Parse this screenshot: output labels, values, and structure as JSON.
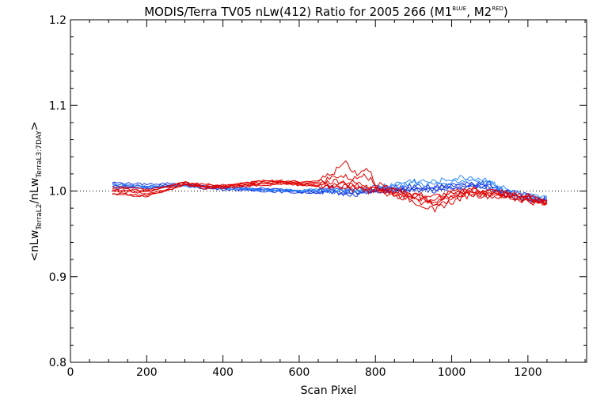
{
  "chart_data": {
    "type": "line",
    "title": {
      "main": "MODIS/Terra TV05 nLw(412) Ratio for 2005 266 (M1",
      "m1_sup": "BLUE",
      "mid": ", M2",
      "m2_sup": "RED",
      "end": ")"
    },
    "xlabel": "Scan Pixel",
    "ylabel": {
      "open": "<nLw",
      "sub1": "TerraL2",
      "mid": "/nLw",
      "sub2": "TerraL3:7DAY",
      "close": ">"
    },
    "xlim": [
      0,
      1354
    ],
    "ylim": [
      0.8,
      1.2
    ],
    "x_ticks": [
      0,
      200,
      400,
      600,
      800,
      1000,
      1200
    ],
    "x_tick_labels": [
      "0",
      "200",
      "400",
      "600",
      "800",
      "1000",
      "1200"
    ],
    "y_ticks": [
      0.8,
      0.9,
      1.0,
      1.1,
      1.2
    ],
    "y_tick_labels": [
      "0.8",
      "0.9",
      "1.0",
      "1.1",
      "1.2"
    ],
    "reference_line": 1.0,
    "x_range": [
      110,
      1250
    ],
    "colors": {
      "blue": "#1a3fe0",
      "lightblue": "#2e8bff",
      "red": "#e00000"
    },
    "series": [
      {
        "group": "blue",
        "color": "#1a3fe0",
        "values": [
          [
            110,
            1.008
          ],
          [
            150,
            1.007
          ],
          [
            200,
            1.006
          ],
          [
            250,
            1.007
          ],
          [
            300,
            1.008
          ],
          [
            350,
            1.005
          ],
          [
            400,
            1.004
          ],
          [
            450,
            1.003
          ],
          [
            500,
            1.002
          ],
          [
            550,
            1.001
          ],
          [
            600,
            1.0
          ],
          [
            650,
            1.0
          ],
          [
            700,
            1.0
          ],
          [
            750,
            0.999
          ],
          [
            800,
            1.001
          ],
          [
            850,
            1.003
          ],
          [
            900,
            1.004
          ],
          [
            950,
            1.003
          ],
          [
            1000,
            1.006
          ],
          [
            1050,
            1.008
          ],
          [
            1100,
            1.006
          ],
          [
            1150,
            0.998
          ],
          [
            1200,
            0.993
          ],
          [
            1250,
            0.99
          ]
        ]
      },
      {
        "group": "blue",
        "color": "#1a3fe0",
        "values": [
          [
            110,
            1.006
          ],
          [
            150,
            1.005
          ],
          [
            200,
            1.004
          ],
          [
            250,
            1.006
          ],
          [
            300,
            1.007
          ],
          [
            350,
            1.004
          ],
          [
            400,
            1.003
          ],
          [
            450,
            1.002
          ],
          [
            500,
            1.001
          ],
          [
            550,
            1.0
          ],
          [
            600,
            0.999
          ],
          [
            650,
            0.999
          ],
          [
            700,
            0.998
          ],
          [
            750,
            0.998
          ],
          [
            800,
            1.0
          ],
          [
            850,
            1.002
          ],
          [
            900,
            1.002
          ],
          [
            950,
            1.001
          ],
          [
            1000,
            1.004
          ],
          [
            1050,
            1.006
          ],
          [
            1100,
            1.004
          ],
          [
            1150,
            0.996
          ],
          [
            1200,
            0.991
          ],
          [
            1250,
            0.988
          ]
        ]
      },
      {
        "group": "blue",
        "color": "#1a3fe0",
        "values": [
          [
            110,
            1.01
          ],
          [
            150,
            1.009
          ],
          [
            200,
            1.008
          ],
          [
            250,
            1.009
          ],
          [
            300,
            1.009
          ],
          [
            350,
            1.006
          ],
          [
            400,
            1.005
          ],
          [
            450,
            1.004
          ],
          [
            500,
            1.003
          ],
          [
            550,
            1.002
          ],
          [
            600,
            1.001
          ],
          [
            650,
            1.001
          ],
          [
            700,
            1.002
          ],
          [
            750,
            1.0
          ],
          [
            800,
            1.002
          ],
          [
            850,
            1.004
          ],
          [
            900,
            1.005
          ],
          [
            950,
            1.004
          ],
          [
            1000,
            1.007
          ],
          [
            1050,
            1.009
          ],
          [
            1100,
            1.008
          ],
          [
            1150,
            0.999
          ],
          [
            1200,
            0.994
          ],
          [
            1250,
            0.991
          ]
        ]
      },
      {
        "group": "blue",
        "color": "#1a3fe0",
        "values": [
          [
            110,
            1.004
          ],
          [
            150,
            1.004
          ],
          [
            200,
            1.003
          ],
          [
            250,
            1.005
          ],
          [
            300,
            1.006
          ],
          [
            350,
            1.003
          ],
          [
            400,
            1.002
          ],
          [
            450,
            1.001
          ],
          [
            500,
            1.0
          ],
          [
            550,
            0.999
          ],
          [
            600,
            0.998
          ],
          [
            650,
            0.998
          ],
          [
            700,
            0.997
          ],
          [
            750,
            0.997
          ],
          [
            800,
            0.999
          ],
          [
            850,
            1.001
          ],
          [
            900,
            1.001
          ],
          [
            950,
            1.0
          ],
          [
            1000,
            1.003
          ],
          [
            1050,
            1.005
          ],
          [
            1100,
            1.003
          ],
          [
            1150,
            0.995
          ],
          [
            1200,
            0.99
          ],
          [
            1250,
            0.987
          ]
        ]
      },
      {
        "group": "lightblue",
        "color": "#2e8bff",
        "values": [
          [
            110,
            1.007
          ],
          [
            200,
            1.005
          ],
          [
            300,
            1.007
          ],
          [
            400,
            1.004
          ],
          [
            500,
            1.002
          ],
          [
            600,
            1.001
          ],
          [
            700,
            1.003
          ],
          [
            750,
            1.002
          ],
          [
            800,
            1.004
          ],
          [
            850,
            1.008
          ],
          [
            900,
            1.012
          ],
          [
            950,
            1.01
          ],
          [
            1000,
            1.014
          ],
          [
            1050,
            1.016
          ],
          [
            1100,
            1.012
          ],
          [
            1150,
            1.0
          ],
          [
            1200,
            0.994
          ],
          [
            1250,
            0.991
          ]
        ]
      },
      {
        "group": "lightblue",
        "color": "#2e8bff",
        "values": [
          [
            110,
            1.005
          ],
          [
            200,
            1.004
          ],
          [
            300,
            1.006
          ],
          [
            400,
            1.003
          ],
          [
            500,
            1.001
          ],
          [
            600,
            1.0
          ],
          [
            700,
            1.001
          ],
          [
            750,
            1.0
          ],
          [
            800,
            1.003
          ],
          [
            850,
            1.006
          ],
          [
            900,
            1.009
          ],
          [
            950,
            1.007
          ],
          [
            1000,
            1.011
          ],
          [
            1050,
            1.013
          ],
          [
            1100,
            1.01
          ],
          [
            1150,
            0.998
          ],
          [
            1200,
            0.992
          ],
          [
            1250,
            0.989
          ]
        ]
      },
      {
        "group": "red",
        "color": "#e00000",
        "values": [
          [
            110,
            1.003
          ],
          [
            150,
            1.002
          ],
          [
            200,
            1.0
          ],
          [
            250,
            1.004
          ],
          [
            300,
            1.01
          ],
          [
            350,
            1.005
          ],
          [
            400,
            1.006
          ],
          [
            450,
            1.008
          ],
          [
            500,
            1.01
          ],
          [
            550,
            1.011
          ],
          [
            600,
            1.009
          ],
          [
            650,
            1.007
          ],
          [
            700,
            1.008
          ],
          [
            750,
            1.006
          ],
          [
            800,
            1.003
          ],
          [
            850,
            0.999
          ],
          [
            900,
            0.995
          ],
          [
            950,
            0.99
          ],
          [
            1000,
            0.996
          ],
          [
            1050,
            1.001
          ],
          [
            1100,
            0.998
          ],
          [
            1150,
            0.996
          ],
          [
            1200,
            0.992
          ],
          [
            1250,
            0.988
          ]
        ]
      },
      {
        "group": "red",
        "color": "#e00000",
        "values": [
          [
            110,
            1.0
          ],
          [
            150,
            0.999
          ],
          [
            200,
            0.997
          ],
          [
            250,
            1.002
          ],
          [
            300,
            1.009
          ],
          [
            350,
            1.004
          ],
          [
            400,
            1.005
          ],
          [
            450,
            1.007
          ],
          [
            500,
            1.009
          ],
          [
            550,
            1.01
          ],
          [
            600,
            1.008
          ],
          [
            650,
            1.006
          ],
          [
            700,
            1.006
          ],
          [
            750,
            1.004
          ],
          [
            800,
            1.001
          ],
          [
            850,
            0.997
          ],
          [
            900,
            0.992
          ],
          [
            950,
            0.986
          ],
          [
            1000,
            0.993
          ],
          [
            1050,
            0.999
          ],
          [
            1100,
            0.996
          ],
          [
            1150,
            0.994
          ],
          [
            1200,
            0.99
          ],
          [
            1250,
            0.986
          ]
        ]
      },
      {
        "group": "red",
        "color": "#e00000",
        "values": [
          [
            110,
            1.005
          ],
          [
            150,
            1.004
          ],
          [
            200,
            1.002
          ],
          [
            250,
            1.006
          ],
          [
            300,
            1.011
          ],
          [
            350,
            1.006
          ],
          [
            400,
            1.007
          ],
          [
            450,
            1.009
          ],
          [
            500,
            1.011
          ],
          [
            550,
            1.012
          ],
          [
            600,
            1.01
          ],
          [
            650,
            1.009
          ],
          [
            700,
            1.012
          ],
          [
            750,
            1.009
          ],
          [
            800,
            1.005
          ],
          [
            850,
            1.001
          ],
          [
            900,
            0.997
          ],
          [
            950,
            0.993
          ],
          [
            1000,
            0.998
          ],
          [
            1050,
            1.003
          ],
          [
            1100,
            1.0
          ],
          [
            1150,
            0.998
          ],
          [
            1200,
            0.994
          ],
          [
            1250,
            0.99
          ]
        ]
      },
      {
        "group": "red",
        "color": "#e00000",
        "values": [
          [
            110,
            0.998
          ],
          [
            150,
            0.996
          ],
          [
            200,
            0.995
          ],
          [
            250,
            1.0
          ],
          [
            300,
            1.008
          ],
          [
            350,
            1.003
          ],
          [
            400,
            1.004
          ],
          [
            450,
            1.006
          ],
          [
            500,
            1.008
          ],
          [
            550,
            1.009
          ],
          [
            600,
            1.007
          ],
          [
            650,
            1.005
          ],
          [
            700,
            1.004
          ],
          [
            750,
            1.002
          ],
          [
            800,
            0.999
          ],
          [
            850,
            0.995
          ],
          [
            900,
            0.99
          ],
          [
            950,
            0.983
          ],
          [
            1000,
            0.99
          ],
          [
            1050,
            0.997
          ],
          [
            1100,
            0.995
          ],
          [
            1150,
            0.993
          ],
          [
            1200,
            0.989
          ],
          [
            1250,
            0.985
          ]
        ]
      },
      {
        "group": "red",
        "color": "#e00000",
        "values": [
          [
            110,
            1.002
          ],
          [
            200,
            0.999
          ],
          [
            300,
            1.01
          ],
          [
            400,
            1.006
          ],
          [
            500,
            1.012
          ],
          [
            600,
            1.011
          ],
          [
            650,
            1.012
          ],
          [
            700,
            1.025
          ],
          [
            720,
            1.035
          ],
          [
            750,
            1.02
          ],
          [
            780,
            1.028
          ],
          [
            800,
            1.01
          ],
          [
            850,
            1.0
          ],
          [
            900,
            0.994
          ],
          [
            950,
            0.988
          ],
          [
            1000,
            0.995
          ],
          [
            1050,
            1.002
          ],
          [
            1100,
            0.998
          ],
          [
            1150,
            0.995
          ],
          [
            1200,
            0.991
          ],
          [
            1250,
            0.987
          ]
        ]
      },
      {
        "group": "red",
        "color": "#e00000",
        "values": [
          [
            110,
            0.996
          ],
          [
            200,
            0.994
          ],
          [
            300,
            1.007
          ],
          [
            400,
            1.003
          ],
          [
            500,
            1.007
          ],
          [
            600,
            1.008
          ],
          [
            650,
            1.01
          ],
          [
            700,
            1.018
          ],
          [
            750,
            1.014
          ],
          [
            770,
            1.022
          ],
          [
            800,
            1.006
          ],
          [
            850,
            0.996
          ],
          [
            900,
            0.988
          ],
          [
            950,
            0.978
          ],
          [
            1000,
            0.987
          ],
          [
            1050,
            0.996
          ],
          [
            1100,
            0.994
          ],
          [
            1150,
            0.992
          ],
          [
            1200,
            0.988
          ],
          [
            1250,
            0.984
          ]
        ]
      }
    ]
  }
}
